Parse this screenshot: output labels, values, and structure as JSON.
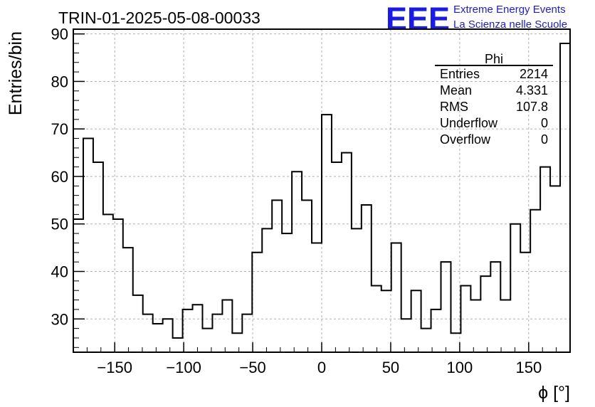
{
  "logo": {
    "letters": "EEE",
    "line1": "Extreme Energy Events",
    "line2": "La Scienza nelle Scuole",
    "color": "#1a1aee"
  },
  "chart_data": {
    "type": "histogram",
    "title": "TRIN-01-2025-05-08-00033",
    "xlabel": "ϕ [°]",
    "ylabel": "Entries/bin",
    "xlim": [
      -180,
      180
    ],
    "ylim": [
      23,
      91
    ],
    "grid": true,
    "bin_width": 7.2,
    "x_ticks": [
      -150,
      -100,
      -50,
      0,
      50,
      100,
      150
    ],
    "x_tick_labels": [
      "−150",
      "−100",
      "−50",
      "0",
      "50",
      "100",
      "150"
    ],
    "y_ticks": [
      30,
      40,
      50,
      60,
      70,
      80,
      90
    ],
    "y_tick_labels": [
      "30",
      "40",
      "50",
      "60",
      "70",
      "80",
      "90"
    ],
    "bin_edges_start": -180,
    "values": [
      51,
      68,
      63,
      52,
      51,
      45,
      35,
      31,
      29,
      30,
      26,
      32,
      33,
      28,
      31,
      34,
      27,
      31,
      44,
      49,
      55,
      48,
      61,
      55,
      46,
      73,
      63,
      65,
      49,
      54,
      37,
      36,
      46,
      30,
      36,
      28,
      32,
      42,
      27,
      37,
      34,
      39,
      42,
      34,
      50,
      44,
      53,
      62,
      58,
      88
    ],
    "line_color": "#000000",
    "stats_box": {
      "title": "Phi",
      "rows": [
        {
          "label": "Entries",
          "value": "2214"
        },
        {
          "label": "Mean",
          "value": "4.331"
        },
        {
          "label": "RMS",
          "value": "107.8"
        },
        {
          "label": "Underflow",
          "value": "0"
        },
        {
          "label": "Overflow",
          "value": "0"
        }
      ]
    }
  }
}
